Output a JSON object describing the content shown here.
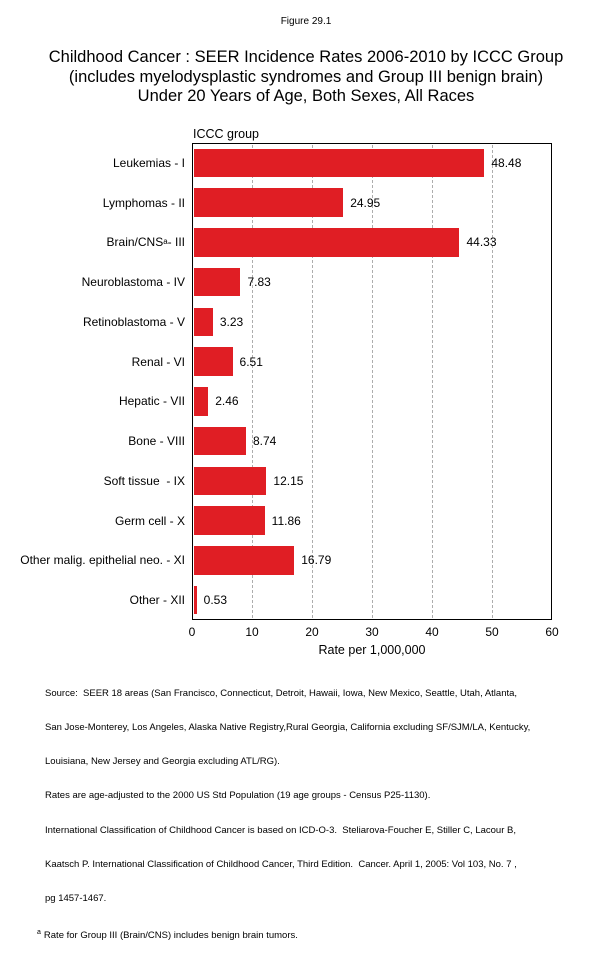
{
  "figure_label": "Figure 29.1",
  "title_lines": [
    "Childhood Cancer : SEER Incidence Rates 2006-2010 by ICCC Group",
    "(includes myelodysplastic syndromes and Group III benign brain)",
    "Under 20 Years of Age, Both Sexes, All Races"
  ],
  "chart_data": {
    "type": "bar",
    "orientation": "horizontal",
    "group_axis_label": "ICCC group",
    "xlabel": "Rate per 1,000,000",
    "xlim": [
      0,
      60
    ],
    "xticks": [
      0,
      10,
      20,
      30,
      40,
      50,
      60
    ],
    "gridlines": [
      10,
      20,
      30,
      40,
      50
    ],
    "grid_style": "dashed",
    "bar_color": "#e01e24",
    "categories": [
      {
        "label": "Leukemias - I"
      },
      {
        "label": "Lymphomas - II"
      },
      {
        "label": "Brain/CNS",
        "sup": "a",
        "suffix": "- III"
      },
      {
        "label": "Neuroblastoma - IV"
      },
      {
        "label": "Retinoblastoma - V"
      },
      {
        "label": "Renal - VI"
      },
      {
        "label": "Hepatic - VII"
      },
      {
        "label": "Bone - VIII"
      },
      {
        "label": "Soft tissue  - IX"
      },
      {
        "label": "Germ cell - X"
      },
      {
        "label": "Other malig. epithelial neo. - XI"
      },
      {
        "label": "Other - XII"
      }
    ],
    "values": [
      48.48,
      24.95,
      44.33,
      7.83,
      3.23,
      6.51,
      2.46,
      8.74,
      12.15,
      11.86,
      16.79,
      0.53
    ],
    "value_labels": [
      "48.48",
      "24.95",
      "44.33",
      "7.83",
      "3.23",
      "6.51",
      "2.46",
      "8.74",
      "12.15",
      "11.86",
      "16.79",
      "0.53"
    ]
  },
  "footnotes": {
    "lines": [
      "Source:  SEER 18 areas (San Francisco, Connecticut, Detroit, Hawaii, Iowa, New Mexico, Seattle, Utah, Atlanta,",
      "San Jose-Monterey, Los Angeles, Alaska Native Registry,Rural Georgia, California excluding SF/SJM/LA, Kentucky,",
      "Louisiana, New Jersey and Georgia excluding ATL/RG).",
      "Rates are age-adjusted to the 2000 US Std Population (19 age groups - Census P25-1130).",
      "International Classification of Childhood Cancer is based on ICD-O-3.  Steliarova-Foucher E, Stiller C, Lacour B,",
      "Kaatsch P. International Classification of Childhood Cancer, Third Edition.  Cancer. April 1, 2005: Vol 103, No. 7 ,",
      "pg 1457-1467."
    ],
    "note_a_marker": "a",
    "note_a_text": "Rate for Group III (Brain/CNS) includes benign brain tumors."
  }
}
